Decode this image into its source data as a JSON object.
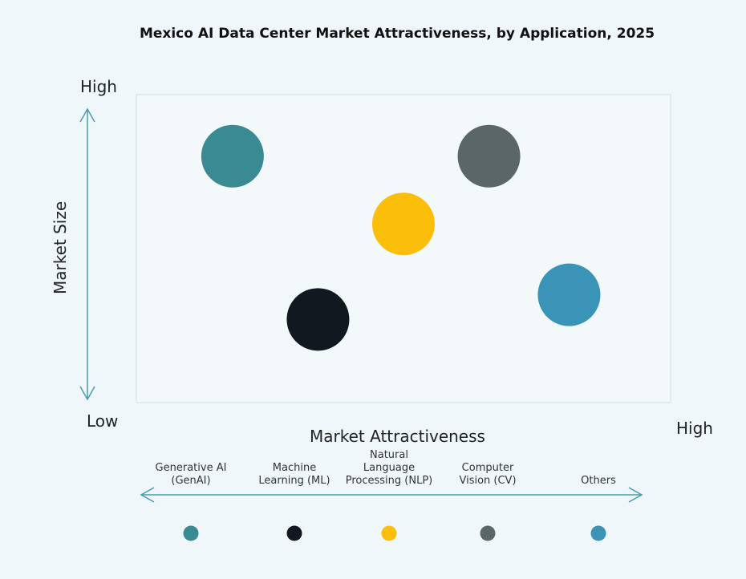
{
  "chart_data": {
    "type": "scatter",
    "title": "Mexico AI Data Center Market Attractiveness,  by Application, 2025",
    "xlabel": "Market Attractiveness",
    "ylabel": "Market Size",
    "x_low": "Low",
    "x_high": "High",
    "y_high": "High",
    "xlim": [
      0,
      10
    ],
    "ylim": [
      0,
      10
    ],
    "grid": false,
    "legend_placement": "bottom",
    "points": [
      {
        "name": "Generative AI (GenAI)",
        "label_lines": [
          "Generative AI",
          "(GenAI)"
        ],
        "x": 1.8,
        "y": 8.0,
        "color": "#3a8a93"
      },
      {
        "name": "Machine Learning (ML)",
        "label_lines": [
          "Machine",
          "Learning (ML)"
        ],
        "x": 3.4,
        "y": 2.7,
        "color": "#111820"
      },
      {
        "name": "Natural Language Processing (NLP)",
        "label_lines": [
          "Natural",
          "Language",
          "Processing (NLP)"
        ],
        "x": 5.0,
        "y": 5.8,
        "color": "#fbbf0b"
      },
      {
        "name": "Computer Vision (CV)",
        "label_lines": [
          "Computer",
          "Vision (CV)"
        ],
        "x": 6.6,
        "y": 8.0,
        "color": "#5a6766"
      },
      {
        "name": "Others",
        "label_lines": [
          "Others"
        ],
        "x": 8.1,
        "y": 3.5,
        "color": "#3a94b8"
      }
    ]
  },
  "colors": {
    "arrow": "#4a9bb0",
    "background": "#eff7fa"
  }
}
